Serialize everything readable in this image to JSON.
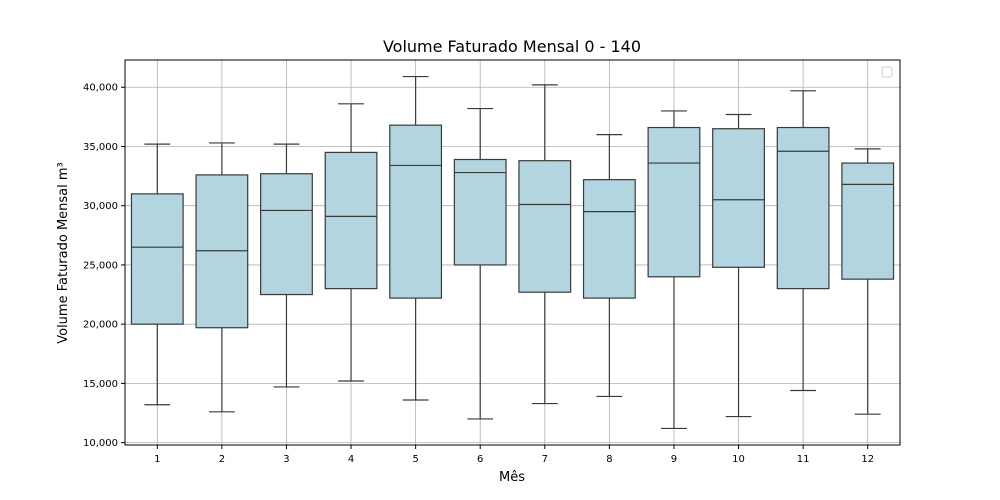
{
  "chart_data": {
    "type": "box",
    "title": "Volume Faturado Mensal 0 - 140",
    "xlabel": "Mês",
    "ylabel": "Volume Faturado Mensal m³",
    "ylim": [
      9800,
      42300
    ],
    "yticks": [
      10000,
      15000,
      20000,
      25000,
      30000,
      35000,
      40000
    ],
    "ytick_labels": [
      "10,000",
      "15,000",
      "20,000",
      "25,000",
      "30,000",
      "35,000",
      "40,000"
    ],
    "grid": true,
    "legend": "top-right (empty)",
    "box_color": "#b3d5e0",
    "line_color": "#3a3a3a",
    "categories": [
      "1",
      "2",
      "3",
      "4",
      "5",
      "6",
      "7",
      "8",
      "9",
      "10",
      "11",
      "12"
    ],
    "boxes": [
      {
        "month": "1",
        "whisker_low": 13200,
        "q1": 20000,
        "median": 26500,
        "q3": 31000,
        "whisker_high": 35200
      },
      {
        "month": "2",
        "whisker_low": 12600,
        "q1": 19700,
        "median": 26200,
        "q3": 32600,
        "whisker_high": 35300
      },
      {
        "month": "3",
        "whisker_low": 14700,
        "q1": 22500,
        "median": 29600,
        "q3": 32700,
        "whisker_high": 35200
      },
      {
        "month": "4",
        "whisker_low": 15200,
        "q1": 23000,
        "median": 29100,
        "q3": 34500,
        "whisker_high": 38600
      },
      {
        "month": "5",
        "whisker_low": 13600,
        "q1": 22200,
        "median": 33400,
        "q3": 36800,
        "whisker_high": 40900
      },
      {
        "month": "6",
        "whisker_low": 12000,
        "q1": 25000,
        "median": 32800,
        "q3": 33900,
        "whisker_high": 38200
      },
      {
        "month": "7",
        "whisker_low": 13300,
        "q1": 22700,
        "median": 30100,
        "q3": 33800,
        "whisker_high": 40200
      },
      {
        "month": "8",
        "whisker_low": 13900,
        "q1": 22200,
        "median": 29500,
        "q3": 32200,
        "whisker_high": 36000
      },
      {
        "month": "9",
        "whisker_low": 11200,
        "q1": 24000,
        "median": 33600,
        "q3": 36600,
        "whisker_high": 38000
      },
      {
        "month": "10",
        "whisker_low": 12200,
        "q1": 24800,
        "median": 30500,
        "q3": 36500,
        "whisker_high": 37700
      },
      {
        "month": "11",
        "whisker_low": 14400,
        "q1": 23000,
        "median": 34600,
        "q3": 36600,
        "whisker_high": 39700
      },
      {
        "month": "12",
        "whisker_low": 12400,
        "q1": 23800,
        "median": 31800,
        "q3": 33600,
        "whisker_high": 34800
      }
    ]
  }
}
